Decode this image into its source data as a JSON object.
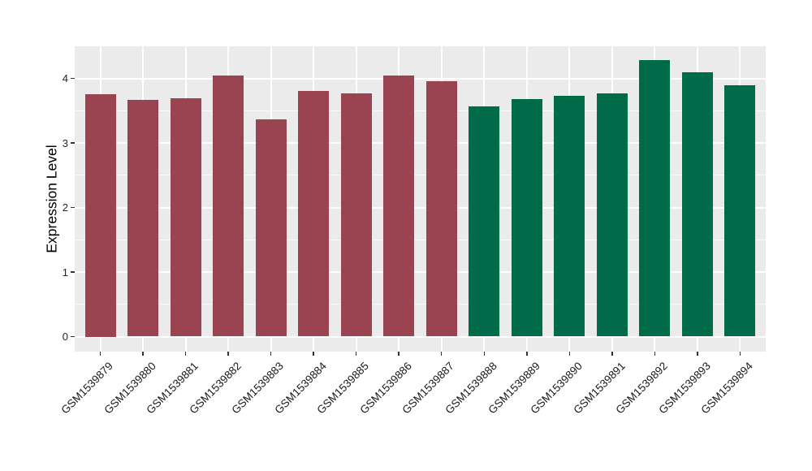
{
  "figure": {
    "background": "#FFFFFF",
    "panel_background": "#EBEBEB",
    "gridline_color": "#FFFFFF",
    "tick_mark_color": "#333333",
    "axis_text_color": "#1A1A1A",
    "axis_title_color": "#000000"
  },
  "chart_data": {
    "type": "bar",
    "title": "",
    "xlabel": "",
    "ylabel": "Expression Level",
    "categories": [
      "GSM1539879",
      "GSM1539880",
      "GSM1539881",
      "GSM1539882",
      "GSM1539883",
      "GSM1539884",
      "GSM1539885",
      "GSM1539886",
      "GSM1539887",
      "GSM1539888",
      "GSM1539889",
      "GSM1539890",
      "GSM1539891",
      "GSM1539892",
      "GSM1539893",
      "GSM1539894"
    ],
    "values": [
      3.75,
      3.67,
      3.69,
      4.04,
      3.37,
      3.8,
      3.77,
      4.04,
      3.95,
      3.56,
      3.68,
      3.73,
      3.77,
      4.28,
      4.1,
      3.89
    ],
    "bar_colors": [
      "#9A4452",
      "#9A4452",
      "#9A4452",
      "#9A4452",
      "#9A4452",
      "#9A4452",
      "#9A4452",
      "#9A4452",
      "#9A4452",
      "#006B49",
      "#006B49",
      "#006B49",
      "#006B49",
      "#006B49",
      "#006B49",
      "#006B49"
    ],
    "groups": [
      {
        "name": "maroon-group",
        "color": "#9A4452",
        "first_category": "GSM1539879",
        "last_category": "GSM1539887",
        "count": 9
      },
      {
        "name": "green-group",
        "color": "#006B49",
        "first_category": "GSM1539888",
        "last_category": "GSM1539894",
        "count": 7
      }
    ],
    "yticks": [
      0,
      1,
      2,
      3,
      4
    ],
    "ytick_labels": [
      "0",
      "1",
      "2",
      "3",
      "4"
    ],
    "minor_yticks": [
      0.5,
      1.5,
      2.5,
      3.5
    ],
    "ylim": [
      0,
      4.5
    ],
    "grid": "white major and minor horizontal lines, white vertical lines at category centers, on gray panel",
    "legend_position": "none"
  }
}
